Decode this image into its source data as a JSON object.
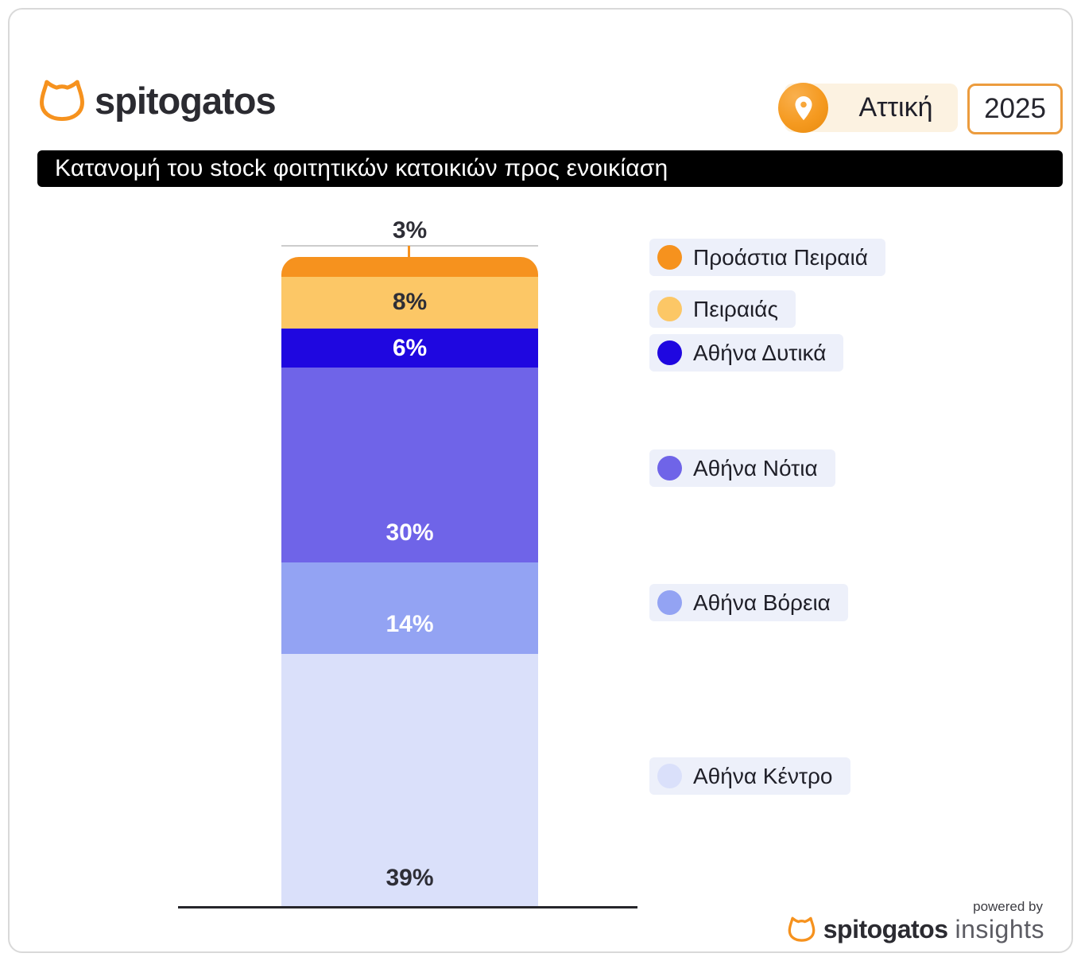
{
  "header": {
    "brand": "spitogatos",
    "location": "Αττική",
    "year": "2025"
  },
  "title": "Κατανομή του stock φοιτητικών κατοικιών προς ενοικίαση",
  "chart_data": {
    "type": "bar",
    "subtype": "single-stacked-column",
    "title": "Κατανομή του stock φοιτητικών κατοικιών προς ενοικίαση",
    "unit": "%",
    "categories": [
      "Προάστια Πειραιά",
      "Πειραιάς",
      "Αθήνα Δυτικά",
      "Αθήνα Νότια",
      "Αθήνα Βόρεια",
      "Αθήνα Κέντρο"
    ],
    "values": [
      3,
      8,
      6,
      30,
      14,
      39
    ],
    "labels": [
      "3%",
      "8%",
      "6%",
      "30%",
      "14%",
      "39%"
    ],
    "colors": [
      "#f6921e",
      "#fcc766",
      "#1f07e0",
      "#6f64e8",
      "#93a3f3",
      "#dae0fa"
    ],
    "label_colors": [
      "#2e2e36",
      "#2e2e36",
      "#ffffff",
      "#ffffff",
      "#ffffff",
      "#2e2e36"
    ],
    "order_top_to_bottom": true,
    "legend_position": "right",
    "total": 100
  },
  "theme": {
    "brand_orange": "#f6921e",
    "banner_bg": "#000000",
    "legend_bg": "#edf0fa",
    "card_border": "#d9d9d9",
    "location_pill_bg": "#fcf2e1",
    "year_border": "#ec9c3e"
  },
  "footer": {
    "powered_by": "powered by",
    "brand": "spitogatos",
    "suffix": "insights"
  }
}
